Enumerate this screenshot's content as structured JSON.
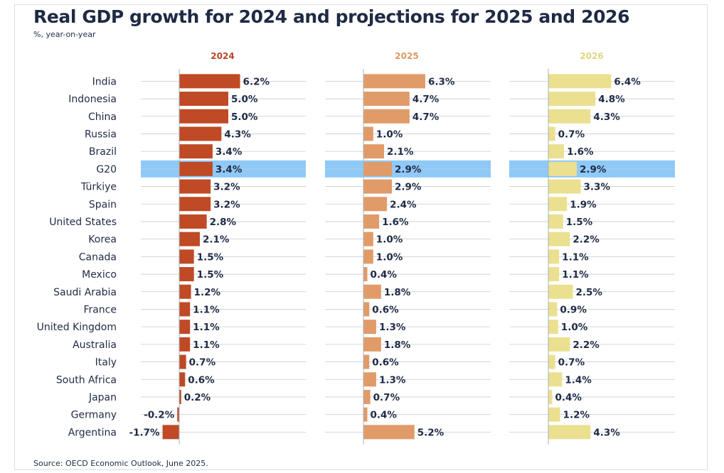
{
  "title": "Real GDP growth for 2024 and projections for 2025 and 2026",
  "subtitle": "%, year-on-year",
  "source": "Source: OECD Economic Outlook, June 2025.",
  "colors": {
    "s2024": "#bf4a25",
    "s2025": "#e19b68",
    "s2026": "#ebe090",
    "highlight": "#8ec9f7",
    "header2024": "#b8452a",
    "header2025": "#dd9a62",
    "header2026": "#e3d581"
  },
  "chart_data": {
    "type": "bar",
    "orientation": "horizontal",
    "title": "Real GDP growth for 2024 and projections for 2025 and 2026",
    "subtitle": "%, year-on-year",
    "highlighted_category": "G20",
    "categories": [
      "India",
      "Indonesia",
      "China",
      "Russia",
      "Brazil",
      "G20",
      "Türkiye",
      "Spain",
      "United States",
      "Korea",
      "Canada",
      "Mexico",
      "Saudi Arabia",
      "France",
      "United Kingdom",
      "Australia",
      "Italy",
      "South Africa",
      "Japan",
      "Germany",
      "Argentina"
    ],
    "series": [
      {
        "name": "2024",
        "values": [
          6.2,
          5.0,
          5.0,
          4.3,
          3.4,
          3.4,
          3.2,
          3.2,
          2.8,
          2.1,
          1.5,
          1.5,
          1.2,
          1.1,
          1.1,
          1.1,
          0.7,
          0.6,
          0.2,
          -0.2,
          -1.7
        ]
      },
      {
        "name": "2025",
        "values": [
          6.3,
          4.7,
          4.7,
          1.0,
          2.1,
          2.9,
          2.9,
          2.4,
          1.6,
          1.0,
          1.0,
          0.4,
          1.8,
          0.6,
          1.3,
          1.8,
          0.6,
          1.3,
          0.7,
          0.4,
          5.2
        ]
      },
      {
        "name": "2026",
        "values": [
          6.4,
          4.8,
          4.3,
          0.7,
          1.6,
          2.9,
          3.3,
          1.9,
          1.5,
          2.2,
          1.1,
          1.1,
          2.5,
          0.9,
          1.0,
          2.2,
          0.7,
          1.4,
          0.4,
          1.2,
          4.3
        ]
      }
    ],
    "value_labels": {
      "2024": [
        "6.2%",
        "5.0%",
        "5.0%",
        "4.3%",
        "3.4%",
        "3.4%",
        "3.2%",
        "3.2%",
        "2.8%",
        "2.1%",
        "1.5%",
        "1.5%",
        "1.2%",
        "1.1%",
        "1.1%",
        "1.1%",
        "0.7%",
        "0.6%",
        "0.2%",
        "-0.2%",
        "-1.7%"
      ],
      "2025": [
        "6.3%",
        "4.7%",
        "4.7%",
        "1.0%",
        "2.1%",
        "2.9%",
        "2.9%",
        "2.4%",
        "1.6%",
        "1.0%",
        "1.0%",
        "0.4%",
        "1.8%",
        "0.6%",
        "1.3%",
        "1.8%",
        "0.6%",
        "1.3%",
        "0.7%",
        "0.4%",
        "5.2%"
      ],
      "2026": [
        "6.4%",
        "4.8%",
        "4.3%",
        "0.7%",
        "1.6%",
        "2.9%",
        "3.3%",
        "1.9%",
        "1.5%",
        "2.2%",
        "1.1%",
        "1.1%",
        "2.5%",
        "0.9%",
        "1.0%",
        "2.2%",
        "0.7%",
        "1.4%",
        "0.4%",
        "1.2%",
        "4.3%"
      ]
    },
    "xlim": [
      -3,
      8
    ],
    "grid": true,
    "legend": "none"
  }
}
